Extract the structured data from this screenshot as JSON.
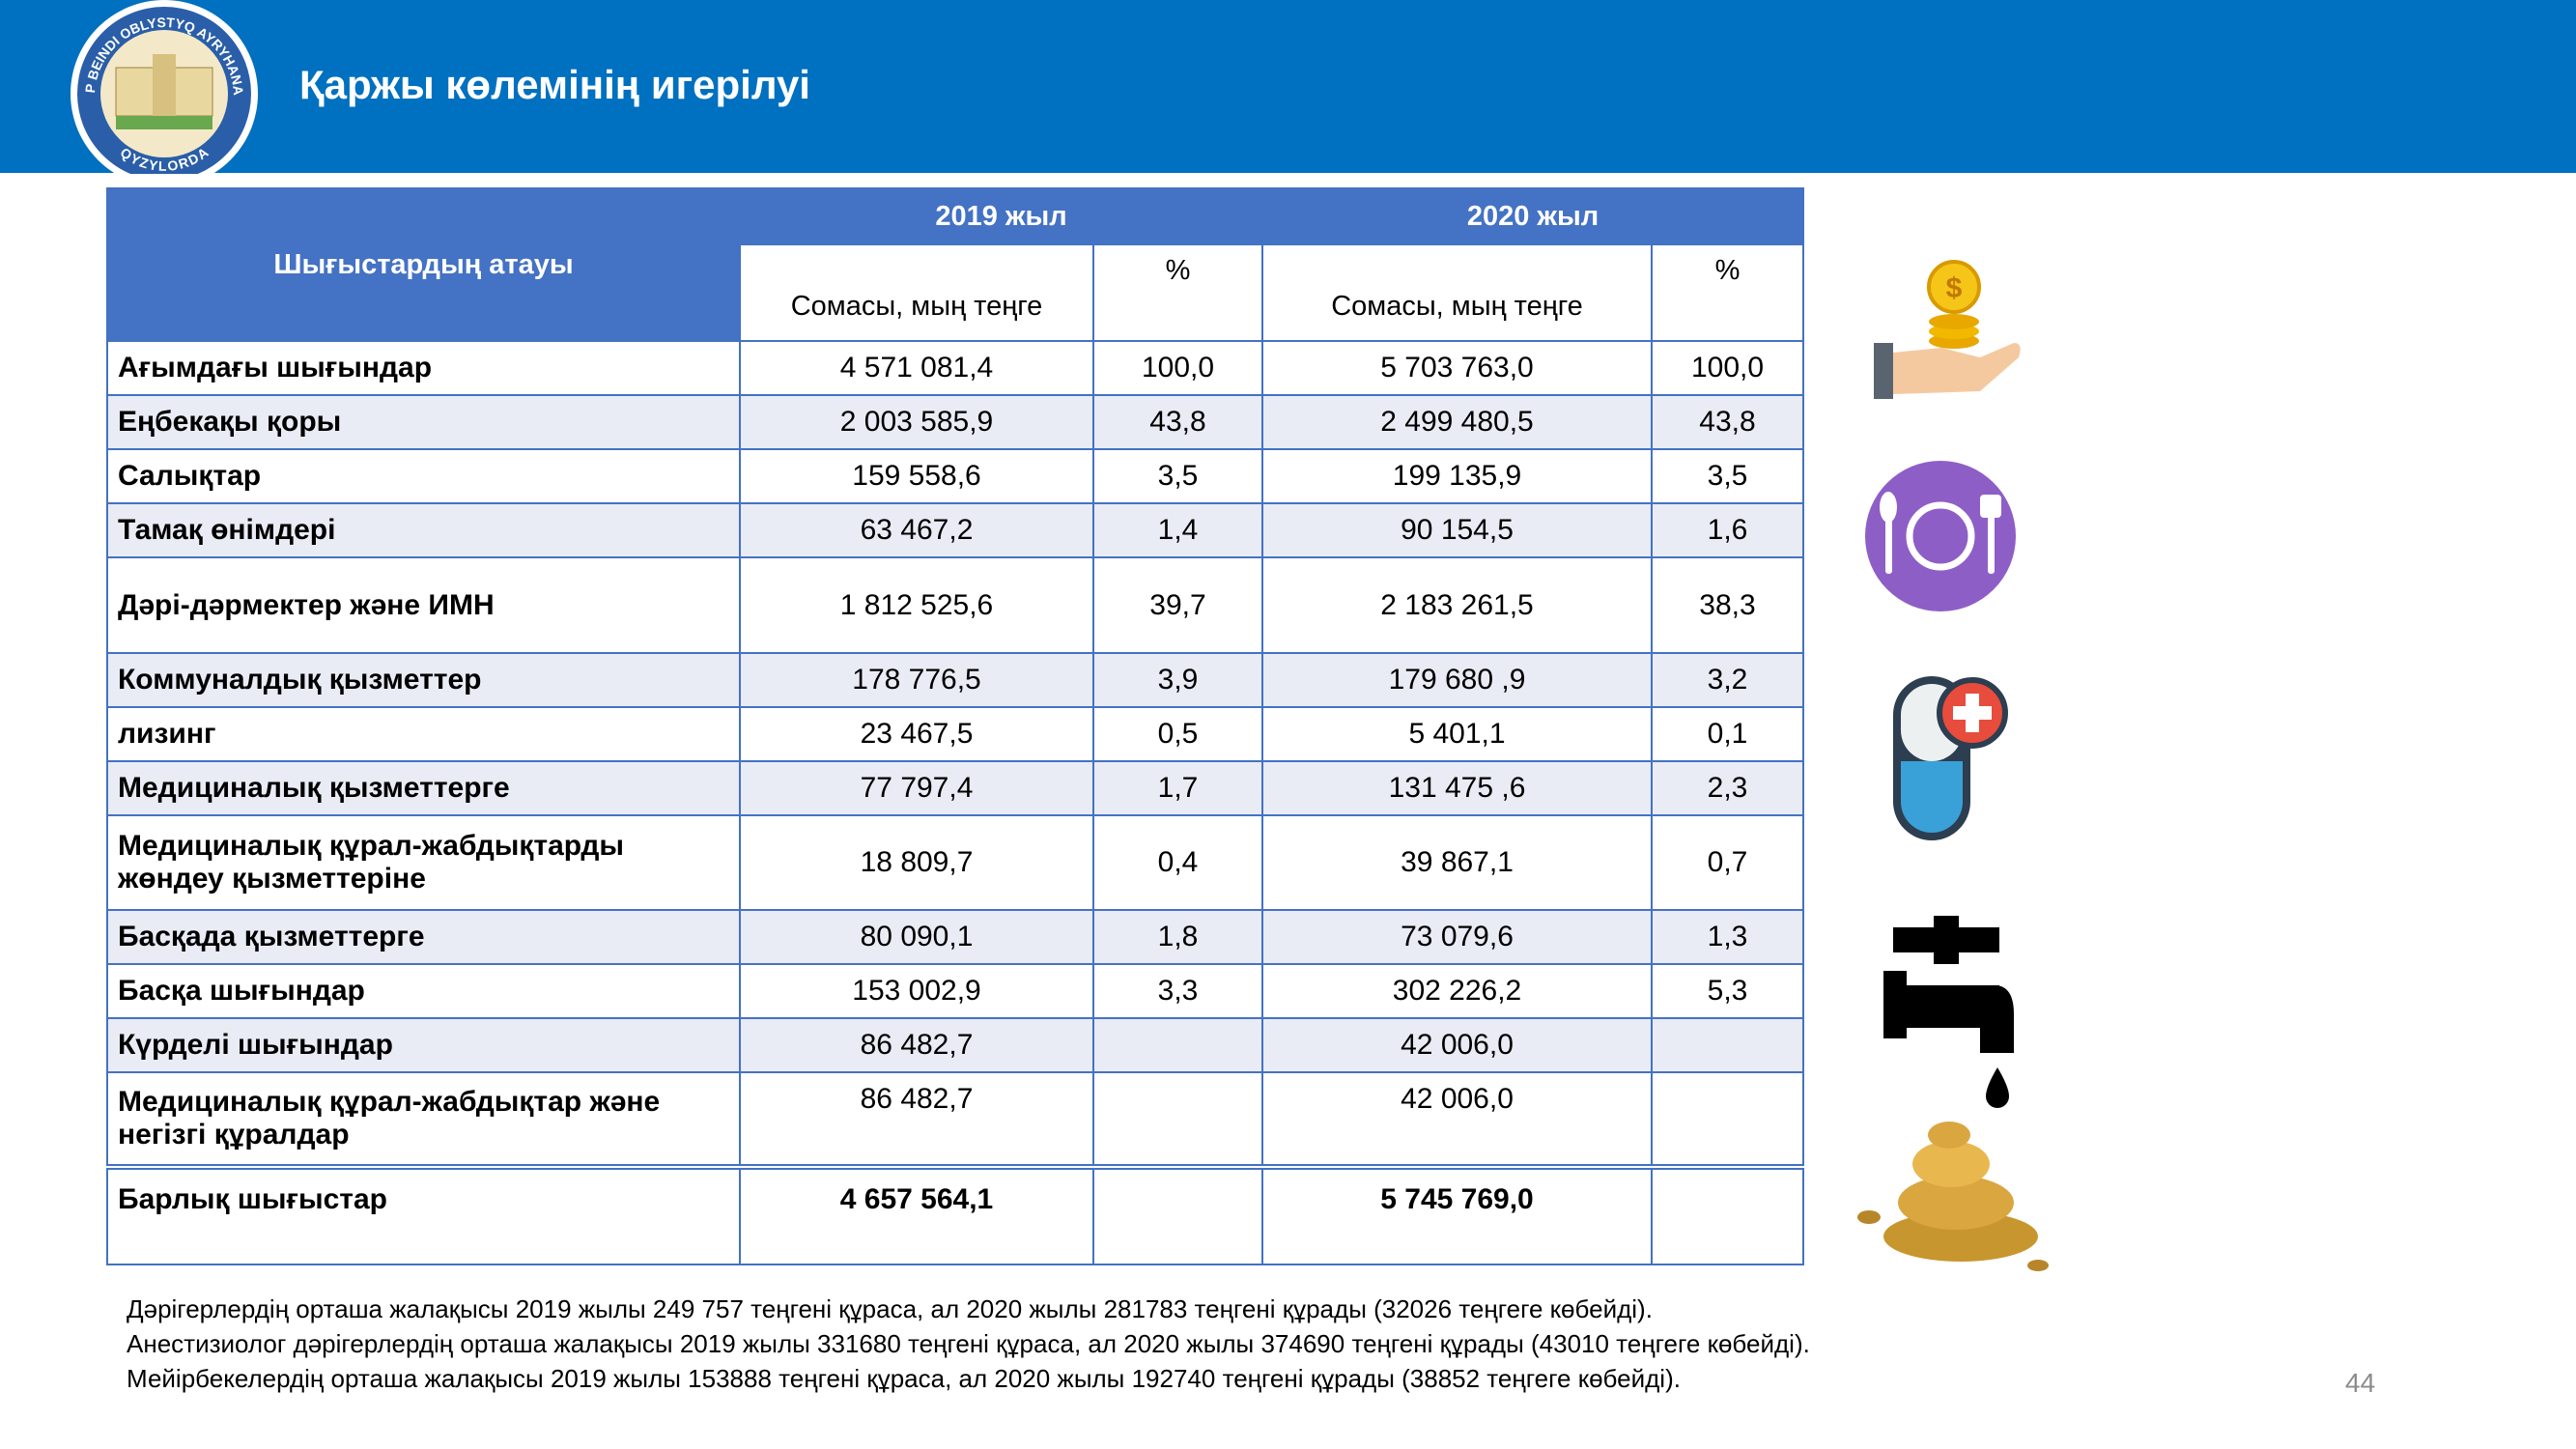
{
  "header": {
    "title": "Қаржы көлемінің  игерілуі",
    "logo": {
      "top": "KÓP BEINDI OBLYSTYQ AYRYHANASY",
      "bottom": "QYZYLORDA"
    }
  },
  "table": {
    "name_header": "Шығыстардың атауы",
    "years": [
      "2019 жыл",
      "2020 жыл"
    ],
    "subheaders": [
      "Сомасы, мың теңге",
      "%",
      "Сомасы, мың теңге",
      "%"
    ],
    "rows": [
      [
        "Ағымдағы шығындар",
        "4 571 081,4",
        "100,0",
        "5 703 763,0",
        "100,0"
      ],
      [
        "Еңбекақы қоры",
        "2 003 585,9",
        "43,8",
        "2 499 480,5",
        "43,8"
      ],
      [
        "Салықтар",
        "159 558,6",
        "3,5",
        "199 135,9",
        "3,5"
      ],
      [
        "Тамақ өнімдері",
        "63 467,2",
        "1,4",
        "90 154,5",
        "1,6"
      ],
      [
        "Дәрі-дәрмектер және ИМН",
        "1 812 525,6",
        "39,7",
        "2 183 261,5",
        "38,3"
      ],
      [
        "Коммуналдық қызметтер",
        "178 776,5",
        "3,9",
        "179 680 ,9",
        "3,2"
      ],
      [
        "лизинг",
        "23 467,5",
        "0,5",
        "5 401,1",
        "0,1"
      ],
      [
        "Медициналық қызметтерге",
        "77 797,4",
        "1,7",
        "131 475 ,6",
        "2,3"
      ],
      [
        "Медициналық құрал-жабдықтарды жөндеу қызметтеріне",
        "18 809,7",
        "0,4",
        "39 867,1",
        "0,7"
      ],
      [
        "Басқада қызметтерге",
        "80 090,1",
        "1,8",
        "73 079,6",
        "1,3"
      ],
      [
        "Басқа шығындар",
        "153 002,9",
        "3,3",
        "302 226,2",
        "5,3"
      ],
      [
        "Күрделі шығындар",
        "86 482,7",
        null,
        "42 006,0",
        null
      ],
      [
        "Медициналық  құрал-жабдықтар және негізгі құралдар",
        "86 482,7",
        null,
        "42 006,0",
        null
      ]
    ],
    "total": [
      "Барлық шығыстар",
      "4 657 564,1",
      null,
      "5 745 769,0",
      null
    ]
  },
  "notes": [
    "Дәрігерлердің орташа жалақысы 2019 жылы 249 757 теңгені құраса, ал 2020 жылы 281783 теңгені құрады (32026 теңгеге көбейді).",
    "Анестизиолог дәрігерлердің орташа жалақысы 2019 жылы 331680 теңгені құраса, ал 2020 жылы 374690 теңгені құрады (43010 теңгеге көбейді).",
    "Мейірбекелердің орташа жалақысы 2019 жылы 153888 теңгені құраса, ал 2020 жылы 192740 теңгені құрады (38852 теңгеге көбейді)."
  ],
  "page_number": "44"
}
